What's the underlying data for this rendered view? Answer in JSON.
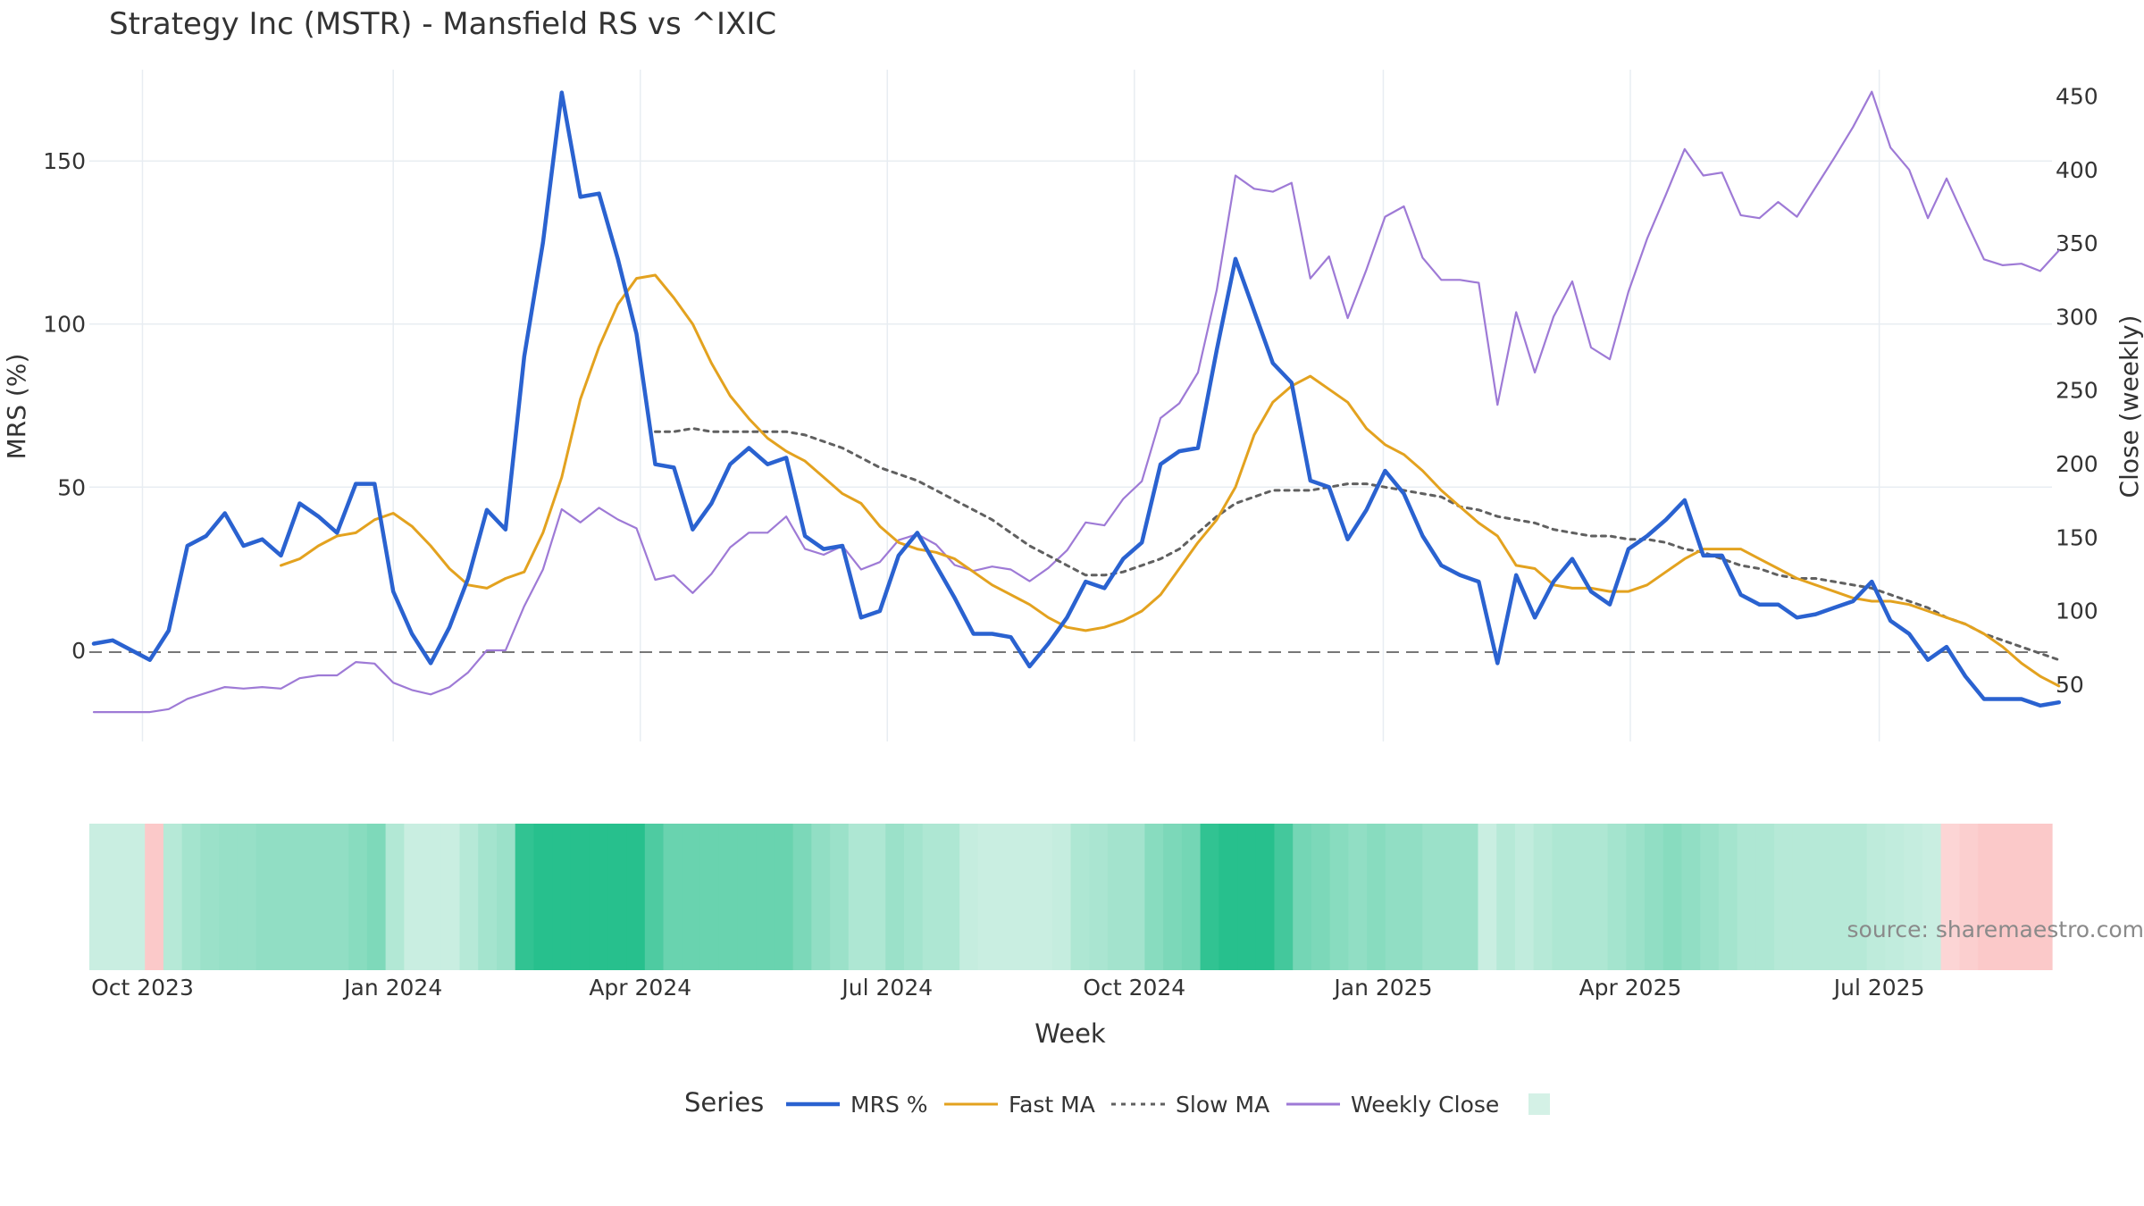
{
  "title": "Strategy Inc (MSTR) - Mansfield RS vs ^IXIC",
  "source": "source: sharemaestro.com",
  "colors": {
    "mrs": "#2a62d0",
    "fast_ma": "#e3a21f",
    "slow_ma": "#606060",
    "close": "#9e7ad6",
    "zero_line": "#777777",
    "grid": "#e8edf2",
    "axis_text": "#333333",
    "heat_positive": "#27c08d",
    "heat_negative": "#fbc9c9"
  },
  "chart_data": {
    "type": "line",
    "title": "Strategy Inc (MSTR) - Mansfield RS vs ^IXIC",
    "xlabel": "Week",
    "ylabel": "MRS (%)",
    "y2label": "Close (weekly)",
    "ylim": [
      -28,
      178
    ],
    "y2lim": [
      11,
      468
    ],
    "yticks": [
      0,
      50,
      100,
      150
    ],
    "y2ticks": [
      50,
      100,
      150,
      200,
      250,
      300,
      350,
      400,
      450
    ],
    "x_tick_labels": [
      "Oct 2023",
      "Jan 2024",
      "Apr 2024",
      "Jul 2024",
      "Oct 2024",
      "Jan 2025",
      "Apr 2025",
      "Jul 2025"
    ],
    "x_tick_index": [
      2.6,
      16.0,
      29.2,
      42.4,
      55.6,
      68.9,
      82.1,
      95.4
    ],
    "legend_title": "Series",
    "legend_position": "bottom",
    "grid": true,
    "series": [
      {
        "name": "MRS %",
        "axis": "left",
        "values": [
          2,
          3,
          0,
          -3,
          6,
          32,
          35,
          42,
          32,
          34,
          29,
          45,
          41,
          36,
          51,
          51,
          18,
          5,
          -4,
          7,
          22,
          43,
          37,
          90,
          125,
          171,
          139,
          140,
          120,
          97,
          57,
          56,
          37,
          45,
          57,
          62,
          57,
          59,
          35,
          31,
          32,
          10,
          12,
          29,
          36,
          26,
          16,
          5,
          5,
          4,
          -5,
          2,
          10,
          21,
          19,
          28,
          33,
          57,
          61,
          62,
          92,
          120,
          104,
          88,
          82,
          52,
          50,
          34,
          43,
          55,
          48,
          35,
          26,
          23,
          21,
          -4,
          23,
          10,
          21,
          28,
          18,
          14,
          31,
          35,
          40,
          46,
          29,
          29,
          17,
          14,
          14,
          10,
          11,
          13,
          15,
          21,
          9,
          5,
          -3,
          1,
          -8,
          -15,
          -15,
          -15,
          -17,
          -16
        ]
      },
      {
        "name": "Fast MA",
        "axis": "left",
        "values": [
          null,
          null,
          null,
          null,
          null,
          null,
          null,
          null,
          null,
          null,
          26,
          28,
          32,
          35,
          36,
          40,
          42,
          38,
          32,
          25,
          20,
          19,
          22,
          24,
          36,
          53,
          77,
          93,
          106,
          114,
          115,
          108,
          100,
          88,
          78,
          71,
          65,
          61,
          58,
          53,
          48,
          45,
          38,
          33,
          31,
          30,
          28,
          24,
          20,
          17,
          14,
          10,
          7,
          6,
          7,
          9,
          12,
          17,
          25,
          33,
          40,
          50,
          66,
          76,
          81,
          84,
          80,
          76,
          68,
          63,
          60,
          55,
          49,
          44,
          39,
          35,
          26,
          25,
          20,
          19,
          19,
          18,
          18,
          20,
          24,
          28,
          31,
          31,
          31,
          28,
          25,
          22,
          20,
          18,
          16,
          15,
          15,
          14,
          12,
          10,
          8,
          5,
          1,
          -4,
          -8,
          -11
        ]
      },
      {
        "name": "Slow MA",
        "axis": "left",
        "values": [
          null,
          null,
          null,
          null,
          null,
          null,
          null,
          null,
          null,
          null,
          null,
          null,
          null,
          null,
          null,
          null,
          null,
          null,
          null,
          null,
          null,
          null,
          null,
          null,
          null,
          null,
          null,
          null,
          null,
          null,
          67,
          67,
          68,
          67,
          67,
          67,
          67,
          67,
          66,
          64,
          62,
          59,
          56,
          54,
          52,
          49,
          46,
          43,
          40,
          36,
          32,
          29,
          26,
          23,
          23,
          24,
          26,
          28,
          31,
          36,
          41,
          45,
          47,
          49,
          49,
          49,
          50,
          51,
          51,
          50,
          49,
          48,
          47,
          44,
          43,
          41,
          40,
          39,
          37,
          36,
          35,
          35,
          34,
          34,
          33,
          31,
          30,
          28,
          26,
          25,
          23,
          22,
          22,
          21,
          20,
          19,
          17,
          15,
          13,
          10,
          8,
          5,
          3,
          1,
          -1,
          -3
        ]
      },
      {
        "name": "Weekly Close",
        "axis": "right",
        "values": [
          31,
          31,
          31,
          31,
          33,
          40,
          44,
          48,
          47,
          48,
          47,
          54,
          56,
          56,
          65,
          64,
          51,
          46,
          43,
          48,
          58,
          73,
          73,
          103,
          128,
          169,
          160,
          170,
          162,
          156,
          121,
          124,
          112,
          125,
          143,
          153,
          153,
          164,
          142,
          138,
          144,
          128,
          133,
          148,
          152,
          145,
          131,
          127,
          130,
          128,
          120,
          129,
          141,
          160,
          158,
          176,
          188,
          231,
          241,
          262,
          318,
          396,
          387,
          385,
          391,
          326,
          341,
          299,
          332,
          368,
          375,
          340,
          325,
          325,
          323,
          240,
          303,
          262,
          300,
          324,
          279,
          271,
          317,
          353,
          383,
          414,
          396,
          398,
          369,
          367,
          378,
          368,
          388,
          408,
          429,
          453,
          415,
          400,
          367,
          394,
          366,
          339,
          335,
          336,
          331,
          345
        ]
      }
    ],
    "heatmap": {
      "label": "",
      "values": [
        16,
        16,
        16,
        -25,
        26,
        35,
        40,
        42,
        42,
        45,
        45,
        45,
        45,
        45,
        50,
        55,
        28,
        16,
        16,
        16,
        26,
        35,
        40,
        95,
        100,
        100,
        100,
        100,
        100,
        100,
        80,
        66,
        66,
        66,
        66,
        66,
        66,
        66,
        56,
        45,
        40,
        30,
        30,
        40,
        35,
        30,
        30,
        18,
        16,
        16,
        16,
        16,
        18,
        30,
        32,
        36,
        36,
        50,
        56,
        60,
        95,
        100,
        100,
        100,
        85,
        60,
        56,
        50,
        45,
        50,
        45,
        45,
        40,
        40,
        40,
        16,
        26,
        20,
        26,
        30,
        30,
        30,
        35,
        40,
        45,
        50,
        45,
        40,
        35,
        30,
        30,
        26,
        26,
        26,
        26,
        26,
        22,
        20,
        18,
        16,
        -15,
        -20,
        -25,
        -25,
        -25,
        -25
      ]
    }
  }
}
